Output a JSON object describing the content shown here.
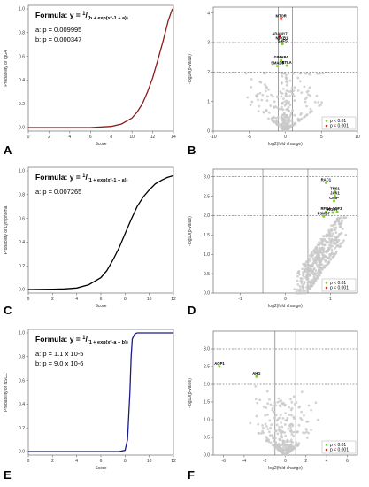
{
  "figure": {
    "panels": [
      {
        "letter": "A",
        "kind": "logistic",
        "formula_prefix": "Formula: y = ",
        "formula_num": "1",
        "formula_den": "(b + exp(x*-1 + a))",
        "params": [
          "a: p = 0.009995",
          "b: p = 0.000347"
        ],
        "ylabel": "Probability of IgG4",
        "xlabel": "Score",
        "curve_color": "#8b1a1a",
        "chart_data": {
          "type": "line",
          "title": "",
          "xlabel": "Score",
          "ylabel": "Probability of IgG4",
          "xlim": [
            0,
            14
          ],
          "ylim": [
            0,
            1
          ],
          "xticks": [
            "0",
            "2",
            "4",
            "6",
            "8",
            "10",
            "12",
            "14"
          ],
          "yticks": [
            "0.0",
            "0.2",
            "0.4",
            "0.6",
            "0.8",
            "1.0"
          ],
          "x": [
            0,
            2,
            4,
            6,
            8,
            9,
            10,
            10.5,
            11,
            11.5,
            12,
            12.5,
            13,
            13.5,
            13.9
          ],
          "y": [
            0.0,
            0.0,
            0.0,
            0.0,
            0.01,
            0.03,
            0.08,
            0.13,
            0.2,
            0.3,
            0.42,
            0.57,
            0.73,
            0.9,
            1.0
          ]
        }
      },
      {
        "letter": "B",
        "kind": "volcano",
        "ylabel": "-log10(p-value)",
        "xlabel": "log2(fold change)",
        "legend": [
          "p < 0.01",
          "p < 0.001"
        ],
        "legend_colors": [
          "#7ed321",
          "#e02020"
        ],
        "chart_data": {
          "type": "scatter",
          "title": "",
          "xlabel": "log2(fold change)",
          "ylabel": "-log10(p-value)",
          "xlim": [
            -10,
            10
          ],
          "ylim": [
            0,
            4.2
          ],
          "xticks": [
            "-10",
            "-5",
            "0",
            "5",
            "10"
          ],
          "yticks": [
            "0",
            "1",
            "2",
            "3",
            "4"
          ],
          "hlines": [
            2,
            3
          ],
          "vlines": [
            -1,
            1
          ],
          "labeled_points": [
            {
              "name": "MTOR",
              "x": -0.6,
              "y": 3.8,
              "color": "#e02020"
            },
            {
              "name": "ADAM17",
              "x": -0.8,
              "y": 3.2,
              "color": "#e02020"
            },
            {
              "name": "NFKB1",
              "x": -0.5,
              "y": 3.05,
              "color": "#7ed321"
            },
            {
              "name": "SAFS",
              "x": -0.4,
              "y": 2.95,
              "color": "#7ed321"
            },
            {
              "name": "GIMAP4",
              "x": -0.6,
              "y": 2.4,
              "color": "#7ed321"
            },
            {
              "name": "SMAD3",
              "x": -1.1,
              "y": 2.2,
              "color": "#7ed321"
            },
            {
              "name": "BTLA",
              "x": 0.2,
              "y": 2.22,
              "color": "#7ed321"
            }
          ]
        }
      },
      {
        "letter": "C",
        "kind": "logistic",
        "formula_prefix": "Formula: y = ",
        "formula_num": "1",
        "formula_den": "(1 + exp(x*-1 + a))",
        "params": [
          "a: p = 0.007265"
        ],
        "ylabel": "Probability of Lymphoma",
        "xlabel": "Score",
        "curve_color": "#000000",
        "chart_data": {
          "type": "line",
          "title": "",
          "xlabel": "Score",
          "ylabel": "Probability of Lymphoma",
          "xlim": [
            0,
            12
          ],
          "ylim": [
            0,
            1
          ],
          "xticks": [
            "0",
            "2",
            "4",
            "6",
            "8",
            "10",
            "12"
          ],
          "yticks": [
            "0.0",
            "0.2",
            "0.4",
            "0.6",
            "0.8",
            "1.0"
          ],
          "x": [
            0,
            2,
            3,
            4,
            5,
            6,
            6.5,
            7,
            7.5,
            8,
            8.5,
            9,
            9.5,
            10,
            10.5,
            11,
            11.5,
            12
          ],
          "y": [
            0.0,
            0.002,
            0.005,
            0.013,
            0.04,
            0.1,
            0.16,
            0.25,
            0.35,
            0.47,
            0.59,
            0.7,
            0.78,
            0.84,
            0.89,
            0.92,
            0.945,
            0.96
          ]
        }
      },
      {
        "letter": "D",
        "kind": "volcano",
        "ylabel": "-log10(p-value)",
        "xlabel": "log2(fold change)",
        "legend": [
          "p < 0.01",
          "p < 0.001"
        ],
        "legend_colors": [
          "#7ed321",
          "#e02020"
        ],
        "chart_data": {
          "type": "scatter",
          "title": "",
          "xlabel": "log2(fold change)",
          "ylabel": "-log10(p-value)",
          "xlim": [
            -1.6,
            1.6
          ],
          "ylim": [
            0,
            3.2
          ],
          "xticks": [
            "-1",
            "0",
            "1"
          ],
          "yticks": [
            "0.0",
            "0.5",
            "1.0",
            "1.5",
            "2.0",
            "2.5",
            "3.0"
          ],
          "hlines": [
            2,
            3
          ],
          "vlines": [
            -0.5,
            0.5
          ],
          "labeled_points": [
            {
              "name": "RAC1",
              "x": 0.9,
              "y": 2.85,
              "color": "#7ed321"
            },
            {
              "name": "TNS1",
              "x": 1.1,
              "y": 2.62,
              "color": "#7ed321"
            },
            {
              "name": "JAK1",
              "x": 1.1,
              "y": 2.5,
              "color": "#7ed321"
            },
            {
              "name": "CMIP",
              "x": 1.08,
              "y": 2.38,
              "color": "#7ed321"
            },
            {
              "name": "RFNA",
              "x": 0.9,
              "y": 2.1,
              "color": "#7ed321"
            },
            {
              "name": "RGS7",
              "x": 1.05,
              "y": 2.08,
              "color": "#7ed321"
            },
            {
              "name": "SCF3",
              "x": 1.15,
              "y": 2.1,
              "color": "#7ed321"
            },
            {
              "name": "PSMD7",
              "x": 0.85,
              "y": 1.98,
              "color": "#7ed321"
            }
          ]
        }
      },
      {
        "letter": "E",
        "kind": "logistic",
        "formula_prefix": "Formula: y = ",
        "formula_num": "1",
        "formula_den": "(1 + exp(x*-a + b))",
        "params": [
          "a: p = 1.1 x 10-5",
          "b: p = 9.0 x 10-6"
        ],
        "ylabel": "Probability of NSCL",
        "xlabel": "Score",
        "curve_color": "#1a1a8b",
        "chart_data": {
          "type": "line",
          "title": "",
          "xlabel": "Score",
          "ylabel": "Probability of NSCL",
          "xlim": [
            0,
            12
          ],
          "ylim": [
            0,
            1
          ],
          "xticks": [
            "0",
            "2",
            "4",
            "6",
            "8",
            "10",
            "12"
          ],
          "yticks": [
            "0.0",
            "0.2",
            "0.4",
            "0.6",
            "0.8",
            "1.0"
          ],
          "x": [
            0,
            2,
            4,
            6,
            7.5,
            8,
            8.2,
            8.4,
            8.5,
            8.6,
            8.8,
            9,
            10,
            12
          ],
          "y": [
            0,
            0,
            0,
            0,
            0,
            0.01,
            0.1,
            0.5,
            0.8,
            0.95,
            0.99,
            1.0,
            1.0,
            1.0
          ]
        }
      },
      {
        "letter": "F",
        "kind": "volcano",
        "ylabel": "-log10(p-value)",
        "xlabel": "log2(fold change)",
        "legend": [
          "p < 0.01",
          "p < 0.001"
        ],
        "legend_colors": [
          "#7ed321",
          "#e02020"
        ],
        "chart_data": {
          "type": "scatter",
          "title": "",
          "xlabel": "log2(fold change)",
          "ylabel": "-log10(p-value)",
          "xlim": [
            -7,
            7
          ],
          "ylim": [
            0,
            3.5
          ],
          "xticks": [
            "-6",
            "-4",
            "-2",
            "0",
            "2",
            "4",
            "6"
          ],
          "yticks": [
            "0.0",
            "0.5",
            "1.0",
            "1.5",
            "2.0",
            "2.5",
            "3.0"
          ],
          "hlines": [
            2,
            3
          ],
          "vlines": [
            -1,
            1
          ],
          "labeled_points": [
            {
              "name": "AQP1",
              "x": -6.4,
              "y": 2.5,
              "color": "#7ed321"
            },
            {
              "name": "AHG",
              "x": -2.8,
              "y": 2.22,
              "color": "#7ed321"
            }
          ]
        }
      }
    ]
  }
}
